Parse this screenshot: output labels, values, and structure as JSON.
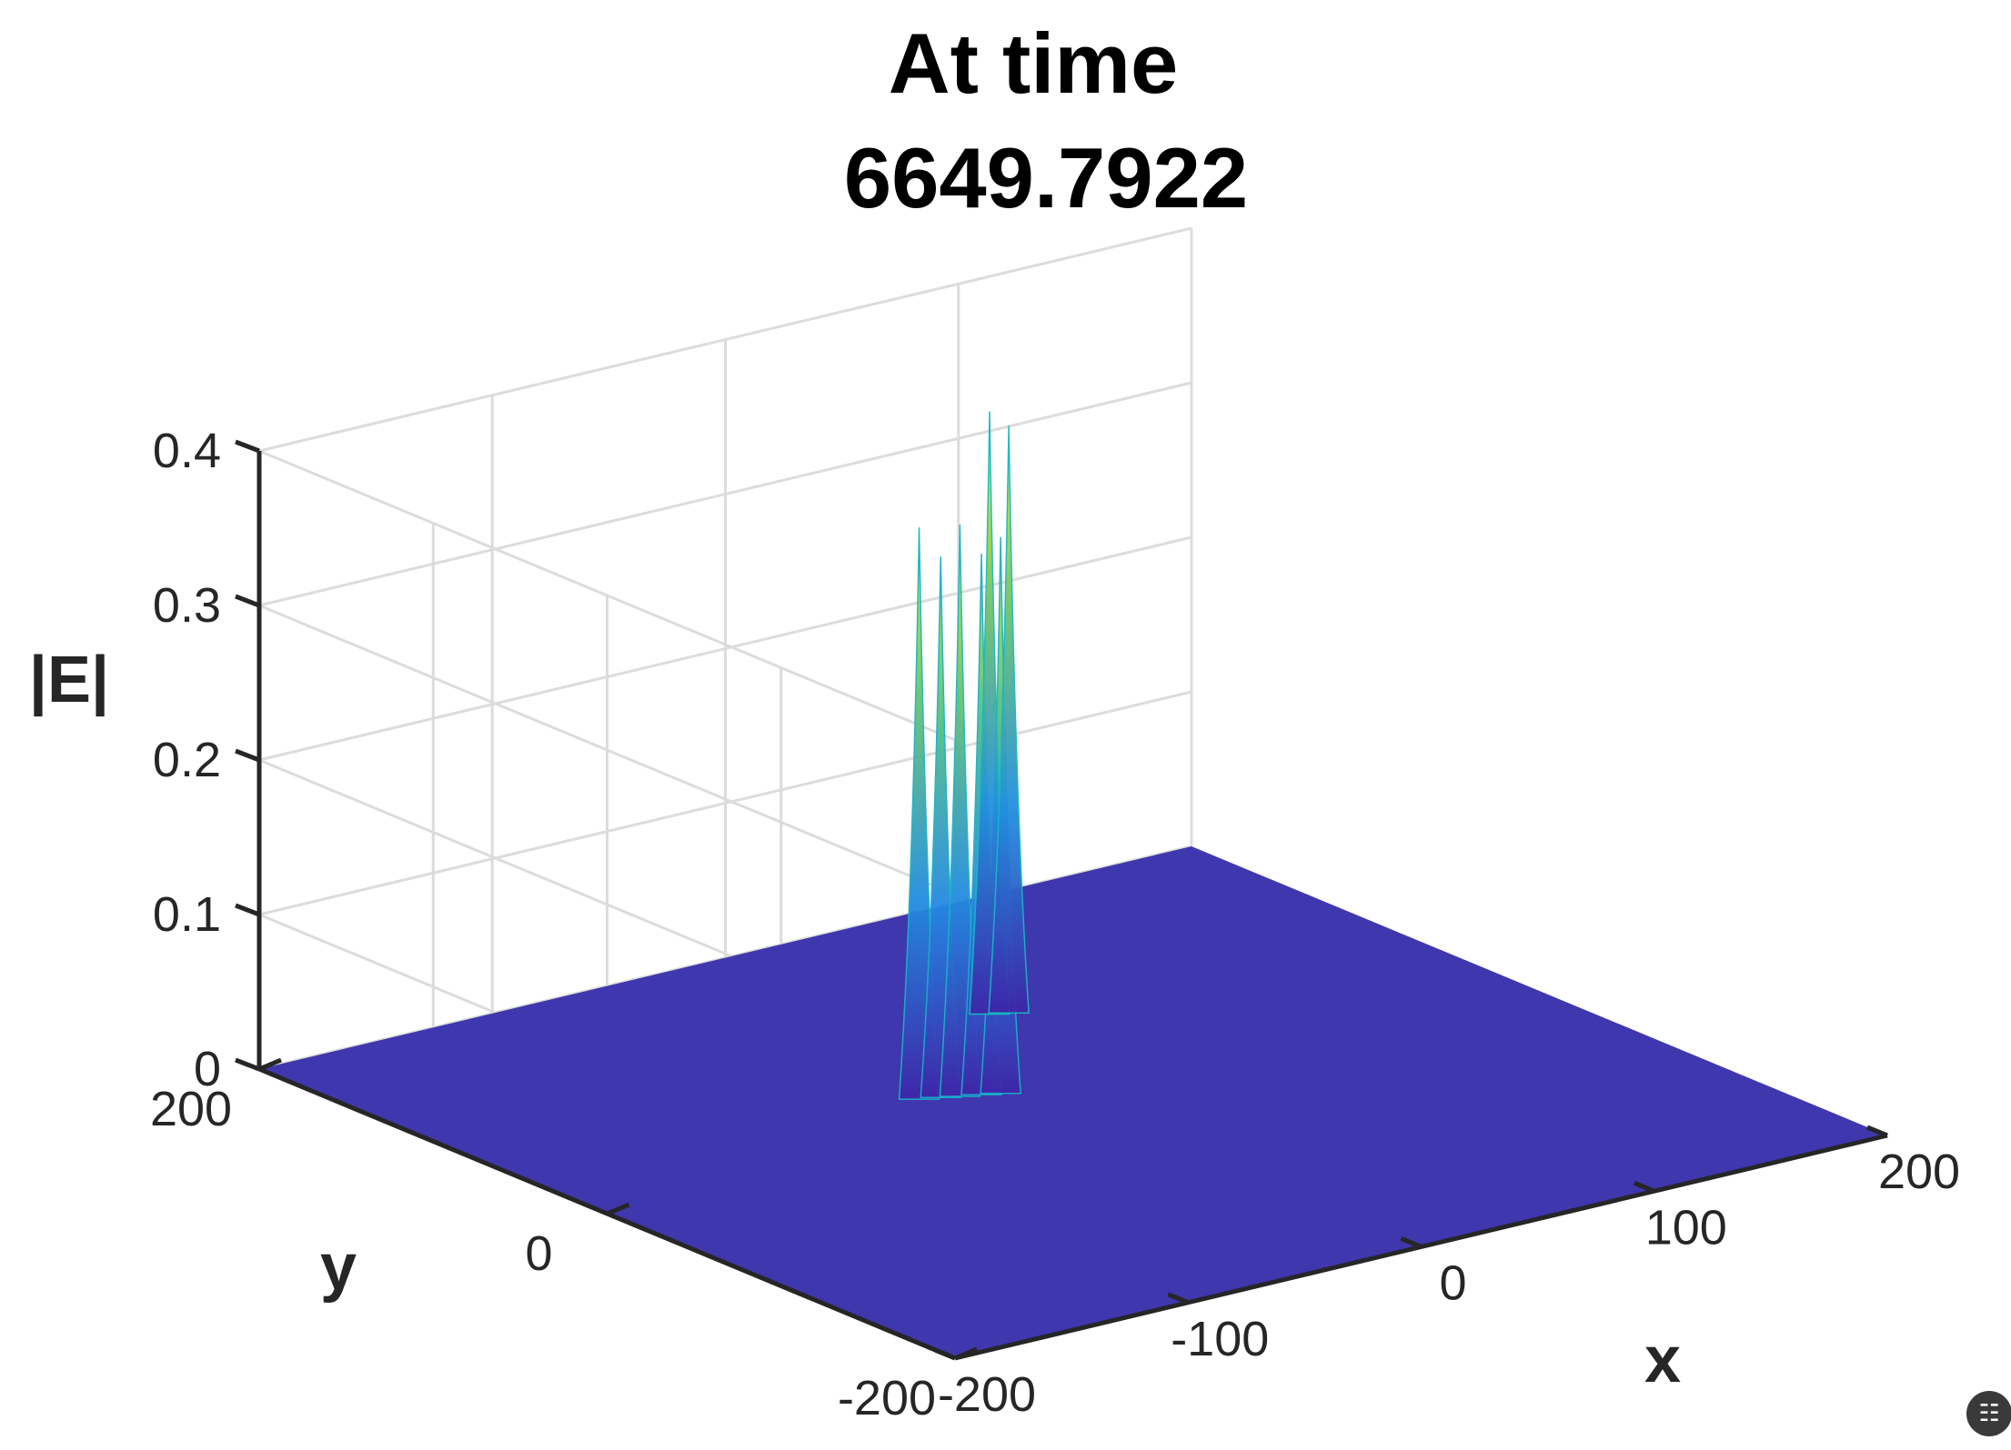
{
  "chart_data": {
    "type": "surface",
    "title_lines": [
      "At time",
      "6649.7922"
    ],
    "xlabel": "x",
    "ylabel": "y",
    "zlabel": "|E|",
    "xlim": [
      -200,
      200
    ],
    "ylim": [
      -200,
      200
    ],
    "zlim": [
      0,
      0.4
    ],
    "x_ticks": [
      "-200",
      "-100",
      "0",
      "100",
      "200"
    ],
    "y_ticks": [
      "-200",
      "0",
      "200"
    ],
    "z_ticks": [
      "0",
      "0.1",
      "0.2",
      "0.3",
      "0.4"
    ],
    "grid": true,
    "colormap": "parula",
    "base_color": "#3f37ae",
    "peaks": [
      {
        "x": -40,
        "y": 35,
        "z": 0.37
      },
      {
        "x": -33,
        "y": 32,
        "z": 0.35
      },
      {
        "x": -27,
        "y": 29,
        "z": 0.37
      },
      {
        "x": -20,
        "y": 26,
        "z": 0.35
      },
      {
        "x": -14,
        "y": 23,
        "z": 0.36
      },
      {
        "x": 35,
        "y": 95,
        "z": 0.39
      },
      {
        "x": 41,
        "y": 92,
        "z": 0.38
      }
    ]
  },
  "ui": {
    "corner_icon": "text-recognition-icon"
  }
}
